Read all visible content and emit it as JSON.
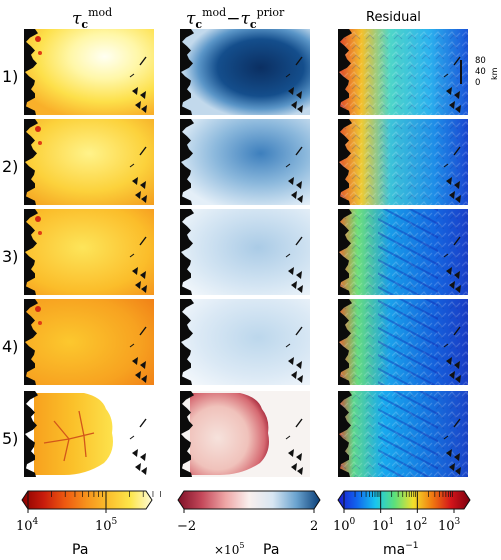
{
  "columns": [
    {
      "title_base": "τ",
      "title_sub": "c",
      "title_sup": "mod"
    },
    {
      "title_base_a": "τ",
      "title_sub_a": "c",
      "title_sup_a": "mod",
      "minus": "−",
      "title_base_b": "τ",
      "title_sub_b": "c",
      "title_sup_b": "prior"
    },
    {
      "title": "Residual"
    }
  ],
  "rows": [
    "1)",
    "2)",
    "3)",
    "4)",
    "5)"
  ],
  "scalebar": {
    "ticks": [
      "80",
      "40",
      "0"
    ],
    "unit": "km"
  },
  "colorbars": [
    {
      "tick_labels": [
        {
          "base": "10",
          "exp": "4"
        },
        {
          "base": "10",
          "exp": "5"
        }
      ],
      "unit": "Pa",
      "colors": [
        "#8b0000",
        "#c81c0c",
        "#ef5a10",
        "#f7941d",
        "#fbc02d",
        "#fde64a",
        "#fffbd8"
      ]
    },
    {
      "tick_labels": [
        "−2",
        "2"
      ],
      "multiplier_base": "×10",
      "multiplier_exp": "5",
      "unit": "Pa",
      "colors": [
        "#7f1027",
        "#c4485a",
        "#eea5a5",
        "#faf0ee",
        "#d8e6f2",
        "#6aa3cf",
        "#0b3f78"
      ]
    },
    {
      "tick_labels": [
        {
          "base": "10",
          "exp": "0"
        },
        {
          "base": "10",
          "exp": "1"
        },
        {
          "base": "10",
          "exp": "2"
        },
        {
          "base": "10",
          "exp": "3"
        }
      ],
      "unit": "ma",
      "unit_exp": "−1",
      "colors": [
        "#1a1ad0",
        "#1166ee",
        "#18c6ee",
        "#5de07a",
        "#f3e02a",
        "#f07a10",
        "#d3141a",
        "#7a0010"
      ]
    }
  ]
}
